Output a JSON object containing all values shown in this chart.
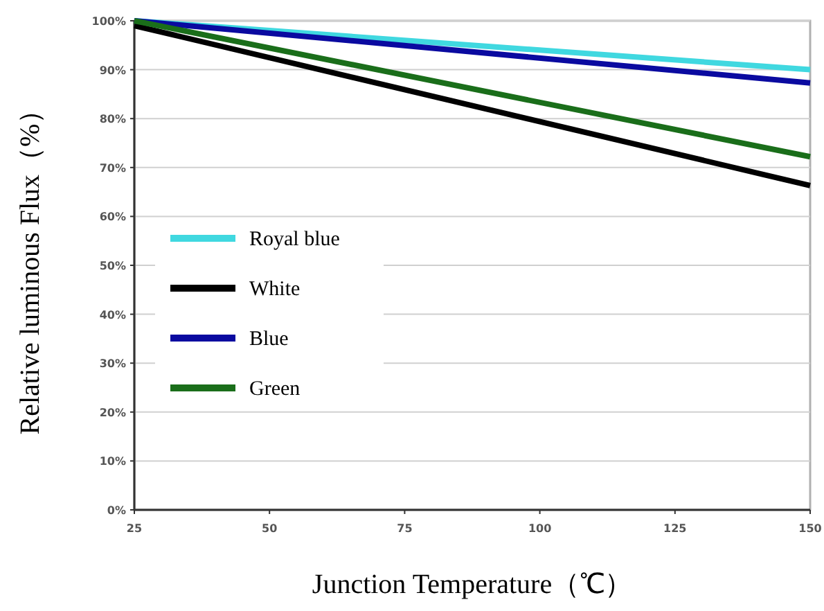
{
  "chart_data": {
    "type": "line",
    "xlabel": "Junction Temperature（℃）",
    "ylabel": "Relative luminous Flux（%）",
    "x": [
      25,
      150
    ],
    "series": [
      {
        "name": "Royal blue",
        "color": "#40d8e0",
        "values": [
          100,
          90
        ]
      },
      {
        "name": "White",
        "color": "#000000",
        "values": [
          99,
          66.3
        ]
      },
      {
        "name": "Blue",
        "color": "#0a0aa0",
        "values": [
          100,
          87.3
        ]
      },
      {
        "name": "Green",
        "color": "#1a6e1a",
        "values": [
          100,
          72.2
        ]
      }
    ],
    "xlim": [
      25,
      150
    ],
    "xticks": [
      25,
      50,
      75,
      100,
      125,
      150
    ],
    "ylim": [
      0,
      100
    ],
    "yticks": [
      {
        "value": 0,
        "label": "0%"
      },
      {
        "value": 10,
        "label": "10%"
      },
      {
        "value": 20,
        "label": "20%"
      },
      {
        "value": 30,
        "label": "30%"
      },
      {
        "value": 40,
        "label": "40%"
      },
      {
        "value": 50,
        "label": "50%"
      },
      {
        "value": 60,
        "label": "60%"
      },
      {
        "value": 70,
        "label": "70%"
      },
      {
        "value": 80,
        "label": "80%"
      },
      {
        "value": 90,
        "label": "90%"
      },
      {
        "value": 100,
        "label": "100%"
      }
    ],
    "grid": "y",
    "legend": "left",
    "marker": "none",
    "line_style": "solid"
  }
}
